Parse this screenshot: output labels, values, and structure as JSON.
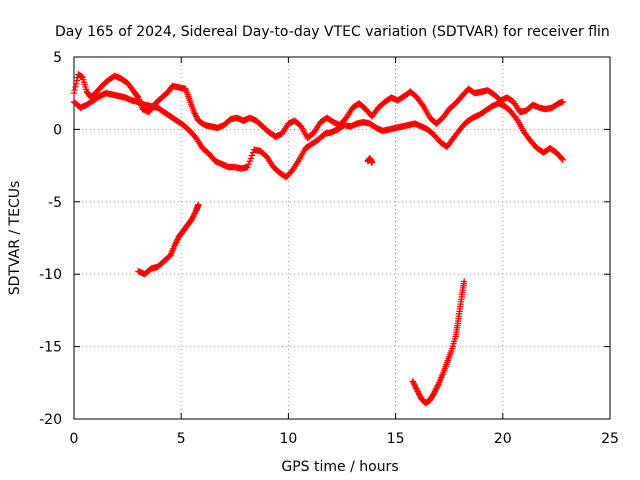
{
  "chart_data": {
    "type": "scatter",
    "title": "Day 165 of 2024, Sidereal Day-to-day VTEC variation (SDTVAR) for receiver flin",
    "xlabel": "GPS time / hours",
    "ylabel": "SDTVAR / TECUs",
    "xlim": [
      0,
      25
    ],
    "ylim": [
      -20,
      5
    ],
    "xticks": [
      0,
      5,
      10,
      15,
      20,
      25
    ],
    "yticks": [
      -20,
      -15,
      -10,
      -5,
      0,
      5
    ],
    "grid": true,
    "marker": "+",
    "color": "#ff0000",
    "series": [
      {
        "name": "upper-track",
        "points": [
          [
            0.0,
            2.5
          ],
          [
            0.2,
            3.8
          ],
          [
            0.4,
            3.6
          ],
          [
            0.6,
            2.6
          ],
          [
            0.8,
            2.2
          ],
          [
            1.0,
            2.5
          ],
          [
            1.3,
            3.0
          ],
          [
            1.6,
            3.4
          ],
          [
            1.9,
            3.7
          ],
          [
            2.2,
            3.5
          ],
          [
            2.5,
            3.2
          ],
          [
            2.8,
            2.6
          ],
          [
            3.0,
            2.2
          ],
          [
            3.2,
            1.4
          ],
          [
            3.5,
            1.2
          ],
          [
            3.8,
            1.8
          ],
          [
            4.1,
            2.2
          ],
          [
            4.4,
            2.6
          ],
          [
            4.6,
            3.0
          ],
          [
            4.9,
            2.9
          ],
          [
            5.2,
            2.8
          ],
          [
            5.4,
            2.0
          ],
          [
            5.6,
            1.2
          ],
          [
            5.8,
            0.6
          ],
          [
            6.1,
            0.3
          ],
          [
            6.4,
            0.2
          ],
          [
            6.7,
            0.1
          ],
          [
            7.0,
            0.3
          ],
          [
            7.3,
            0.7
          ],
          [
            7.6,
            0.8
          ],
          [
            7.9,
            0.6
          ],
          [
            8.2,
            0.8
          ],
          [
            8.5,
            0.6
          ],
          [
            8.8,
            0.2
          ],
          [
            9.1,
            -0.2
          ],
          [
            9.4,
            -0.5
          ],
          [
            9.7,
            -0.3
          ],
          [
            10.0,
            0.4
          ],
          [
            10.3,
            0.6
          ],
          [
            10.6,
            0.2
          ],
          [
            10.9,
            -0.6
          ],
          [
            11.2,
            -0.2
          ],
          [
            11.5,
            0.5
          ],
          [
            11.8,
            0.8
          ],
          [
            12.1,
            0.5
          ],
          [
            12.4,
            0.3
          ],
          [
            12.7,
            0.8
          ],
          [
            13.0,
            1.5
          ],
          [
            13.3,
            1.8
          ],
          [
            13.6,
            1.4
          ],
          [
            13.9,
            0.9
          ],
          [
            14.2,
            1.5
          ],
          [
            14.5,
            1.9
          ],
          [
            14.8,
            2.2
          ],
          [
            15.1,
            2.0
          ],
          [
            15.4,
            2.3
          ],
          [
            15.7,
            2.6
          ],
          [
            16.0,
            2.2
          ],
          [
            16.3,
            1.6
          ],
          [
            16.6,
            0.8
          ],
          [
            16.9,
            0.4
          ],
          [
            17.2,
            0.8
          ],
          [
            17.5,
            1.4
          ],
          [
            17.8,
            1.8
          ],
          [
            18.1,
            2.3
          ],
          [
            18.4,
            2.8
          ],
          [
            18.7,
            2.5
          ],
          [
            19.0,
            2.6
          ],
          [
            19.3,
            2.7
          ],
          [
            19.6,
            2.4
          ],
          [
            19.9,
            2.0
          ],
          [
            20.2,
            2.2
          ],
          [
            20.5,
            1.9
          ],
          [
            20.8,
            1.2
          ],
          [
            21.1,
            1.3
          ],
          [
            21.4,
            1.7
          ],
          [
            21.7,
            1.5
          ],
          [
            22.0,
            1.4
          ],
          [
            22.3,
            1.5
          ],
          [
            22.6,
            1.8
          ],
          [
            22.8,
            1.9
          ]
        ]
      },
      {
        "name": "middle-track",
        "points": [
          [
            0.0,
            1.9
          ],
          [
            0.3,
            1.5
          ],
          [
            0.6,
            1.7
          ],
          [
            0.9,
            2.0
          ],
          [
            1.2,
            2.3
          ],
          [
            1.5,
            2.5
          ],
          [
            1.8,
            2.4
          ],
          [
            2.1,
            2.3
          ],
          [
            2.4,
            2.2
          ],
          [
            2.7,
            2.0
          ],
          [
            3.0,
            1.9
          ],
          [
            3.3,
            1.7
          ],
          [
            3.6,
            1.6
          ],
          [
            3.9,
            1.5
          ],
          [
            4.2,
            1.2
          ],
          [
            4.5,
            0.9
          ],
          [
            4.8,
            0.6
          ],
          [
            5.1,
            0.3
          ],
          [
            5.4,
            -0.1
          ],
          [
            5.7,
            -0.6
          ],
          [
            6.0,
            -1.3
          ],
          [
            6.3,
            -1.7
          ],
          [
            6.6,
            -2.2
          ],
          [
            6.9,
            -2.4
          ],
          [
            7.2,
            -2.6
          ],
          [
            7.5,
            -2.6
          ],
          [
            7.8,
            -2.7
          ],
          [
            8.1,
            -2.6
          ],
          [
            8.4,
            -1.4
          ],
          [
            8.7,
            -1.5
          ],
          [
            9.0,
            -1.9
          ],
          [
            9.3,
            -2.6
          ],
          [
            9.6,
            -3.0
          ],
          [
            9.9,
            -3.3
          ],
          [
            10.2,
            -2.8
          ],
          [
            10.5,
            -2.1
          ],
          [
            10.8,
            -1.3
          ],
          [
            11.1,
            -1.0
          ],
          [
            11.4,
            -0.7
          ],
          [
            11.7,
            -0.3
          ],
          [
            12.0,
            -0.2
          ],
          [
            12.3,
            0.0
          ],
          [
            12.6,
            0.3
          ],
          [
            12.9,
            0.2
          ],
          [
            13.2,
            0.4
          ],
          [
            13.5,
            0.5
          ],
          [
            13.8,
            0.4
          ],
          [
            14.1,
            0.1
          ],
          [
            14.4,
            -0.1
          ],
          [
            14.7,
            0.0
          ],
          [
            15.0,
            0.1
          ],
          [
            15.3,
            0.2
          ],
          [
            15.6,
            0.3
          ],
          [
            15.9,
            0.4
          ],
          [
            16.2,
            0.2
          ],
          [
            16.5,
            0.0
          ],
          [
            16.8,
            -0.4
          ],
          [
            17.1,
            -0.9
          ],
          [
            17.4,
            -1.2
          ],
          [
            17.7,
            -0.6
          ],
          [
            18.0,
            0.0
          ],
          [
            18.3,
            0.5
          ],
          [
            18.6,
            0.8
          ],
          [
            18.9,
            1.0
          ],
          [
            19.2,
            1.3
          ],
          [
            19.5,
            1.6
          ],
          [
            19.8,
            1.8
          ],
          [
            20.1,
            1.6
          ],
          [
            20.4,
            1.2
          ],
          [
            20.7,
            0.6
          ],
          [
            21.0,
            -0.2
          ],
          [
            21.3,
            -0.8
          ],
          [
            21.6,
            -1.3
          ],
          [
            21.9,
            -1.6
          ],
          [
            22.2,
            -1.3
          ],
          [
            22.5,
            -1.6
          ],
          [
            22.8,
            -2.1
          ]
        ]
      },
      {
        "name": "isolated-point",
        "points": [
          [
            13.7,
            -2.2
          ],
          [
            13.8,
            -2.0
          ],
          [
            13.9,
            -2.3
          ]
        ]
      },
      {
        "name": "lower-left-track",
        "points": [
          [
            3.0,
            -9.8
          ],
          [
            3.3,
            -10.0
          ],
          [
            3.6,
            -9.6
          ],
          [
            3.9,
            -9.5
          ],
          [
            4.2,
            -9.1
          ],
          [
            4.5,
            -8.7
          ],
          [
            4.7,
            -8.0
          ],
          [
            4.9,
            -7.4
          ],
          [
            5.1,
            -7.0
          ],
          [
            5.3,
            -6.6
          ],
          [
            5.5,
            -6.2
          ],
          [
            5.7,
            -5.6
          ],
          [
            5.8,
            -5.2
          ]
        ]
      },
      {
        "name": "lower-right-track",
        "points": [
          [
            15.8,
            -17.4
          ],
          [
            16.0,
            -18.0
          ],
          [
            16.2,
            -18.6
          ],
          [
            16.4,
            -18.9
          ],
          [
            16.6,
            -18.7
          ],
          [
            16.8,
            -18.2
          ],
          [
            17.0,
            -17.6
          ],
          [
            17.2,
            -16.9
          ],
          [
            17.4,
            -16.1
          ],
          [
            17.6,
            -15.3
          ],
          [
            17.8,
            -14.3
          ],
          [
            17.9,
            -13.4
          ],
          [
            18.0,
            -12.4
          ],
          [
            18.1,
            -11.4
          ],
          [
            18.2,
            -10.5
          ]
        ]
      }
    ]
  }
}
